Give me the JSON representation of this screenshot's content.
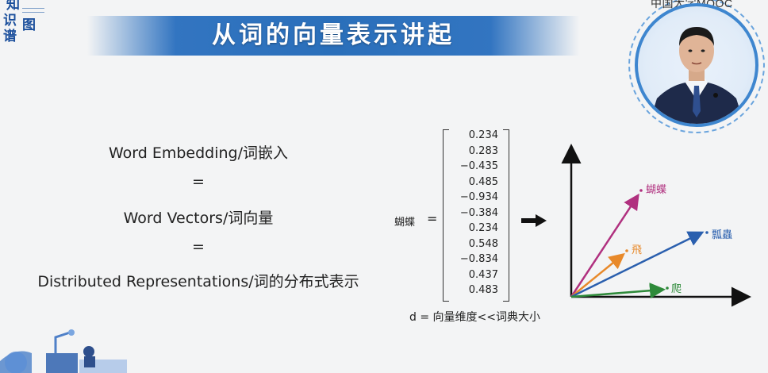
{
  "header": {
    "title": "从词的向量表示讲起",
    "logo_chars": [
      "知",
      "识",
      "谱",
      "图"
    ],
    "mooc_label": "中国大学MOOC"
  },
  "left_block": {
    "lines": [
      "Word  Embedding/词嵌入",
      "=",
      "Word Vectors/词向量",
      "=",
      "Distributed Representations/词的分布式表示"
    ]
  },
  "matrix": {
    "label": "蝴蝶",
    "equals": "=",
    "values": [
      "0.234",
      "0.283",
      "−0.435",
      "0.485",
      "−0.934",
      "−0.384",
      "0.234",
      "0.548",
      "−0.834",
      "0.437",
      "0.483"
    ],
    "note": "d = 向量维度<<词典大小"
  },
  "vector_plot": {
    "vectors": [
      {
        "label": "蝴蝶",
        "color": "#b0307f"
      },
      {
        "label": "飛",
        "color": "#e8892a"
      },
      {
        "label": "瓢蟲",
        "color": "#2a5fae"
      },
      {
        "label": "爬",
        "color": "#2e8a3a"
      }
    ]
  },
  "colors": {
    "banner": "#2a6fba",
    "logo": "#1b4f9c",
    "ring": "#3e86cf"
  }
}
